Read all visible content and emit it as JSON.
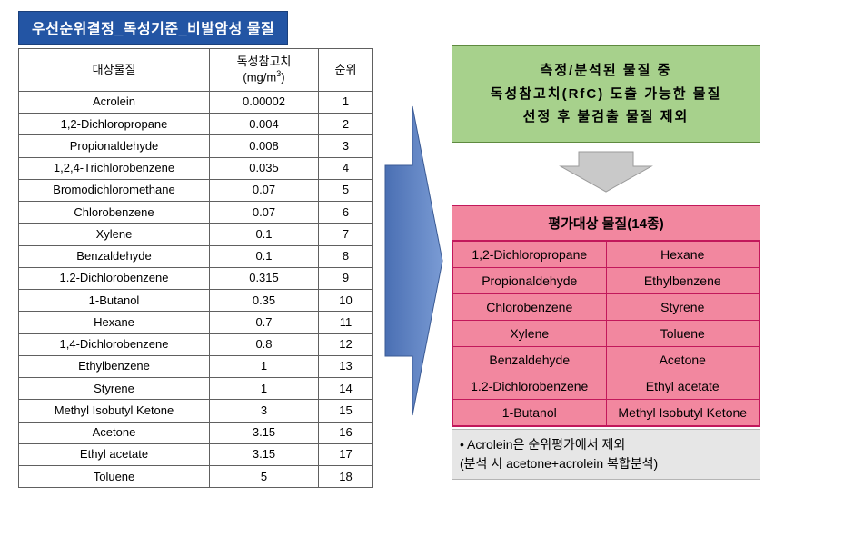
{
  "title": "우선순위결정_독성기준_비발암성 물질",
  "colors": {
    "title_bg": "#2355a4",
    "title_fg": "#ffffff",
    "table_border": "#606060",
    "green_bg": "#a7d18c",
    "green_border": "#5e8a3f",
    "pink_bg": "#f2879f",
    "pink_border": "#c2185b",
    "footnote_bg": "#e6e6e6",
    "footnote_border": "#b5b5b5",
    "arrow_blue_dark": "#4a6fb3",
    "arrow_blue_light": "#7a9bd4",
    "down_arrow_fill": "#c9c9c9",
    "down_arrow_stroke": "#9a9a9a"
  },
  "table": {
    "headers": {
      "substance": "대상물질",
      "value_line1": "독성참고치",
      "value_line2_prefix": "(mg/m",
      "value_line2_sup": "3",
      "value_line2_suffix": ")",
      "rank": "순위"
    },
    "rows": [
      {
        "s": "Acrolein",
        "v": "0.00002",
        "r": "1"
      },
      {
        "s": "1,2-Dichloropropane",
        "v": "0.004",
        "r": "2"
      },
      {
        "s": "Propionaldehyde",
        "v": "0.008",
        "r": "3"
      },
      {
        "s": "1,2,4-Trichlorobenzene",
        "v": "0.035",
        "r": "4"
      },
      {
        "s": "Bromodichloromethane",
        "v": "0.07",
        "r": "5"
      },
      {
        "s": "Chlorobenzene",
        "v": "0.07",
        "r": "6"
      },
      {
        "s": "Xylene",
        "v": "0.1",
        "r": "7"
      },
      {
        "s": "Benzaldehyde",
        "v": "0.1",
        "r": "8"
      },
      {
        "s": "1.2-Dichlorobenzene",
        "v": "0.315",
        "r": "9"
      },
      {
        "s": "1-Butanol",
        "v": "0.35",
        "r": "10"
      },
      {
        "s": "Hexane",
        "v": "0.7",
        "r": "11"
      },
      {
        "s": "1,4-Dichlorobenzene",
        "v": "0.8",
        "r": "12"
      },
      {
        "s": "Ethylbenzene",
        "v": "1",
        "r": "13"
      },
      {
        "s": "Styrene",
        "v": "1",
        "r": "14"
      },
      {
        "s": "Methyl Isobutyl Ketone",
        "v": "3",
        "r": "15"
      },
      {
        "s": "Acetone",
        "v": "3.15",
        "r": "16"
      },
      {
        "s": "Ethyl acetate",
        "v": "3.15",
        "r": "17"
      },
      {
        "s": "Toluene",
        "v": "5",
        "r": "18"
      }
    ]
  },
  "green": {
    "line1": "측정/분석된 물질 중",
    "line2": "독성참고치(RfC) 도출 가능한 물질",
    "line3": "선정 후 불검출 물질 제외"
  },
  "pink": {
    "header": "평가대상 물질(14종)",
    "rows": [
      [
        "1,2-Dichloropropane",
        "Hexane"
      ],
      [
        "Propionaldehyde",
        "Ethylbenzene"
      ],
      [
        "Chlorobenzene",
        "Styrene"
      ],
      [
        "Xylene",
        "Toluene"
      ],
      [
        "Benzaldehyde",
        "Acetone"
      ],
      [
        "1.2-Dichlorobenzene",
        "Ethyl acetate"
      ],
      [
        "1-Butanol",
        "Methyl Isobutyl Ketone"
      ]
    ]
  },
  "footnote": {
    "line1": "• Acrolein은 순위평가에서 제외",
    "line2": "  (분석 시 acetone+acrolein 복합분석)"
  }
}
